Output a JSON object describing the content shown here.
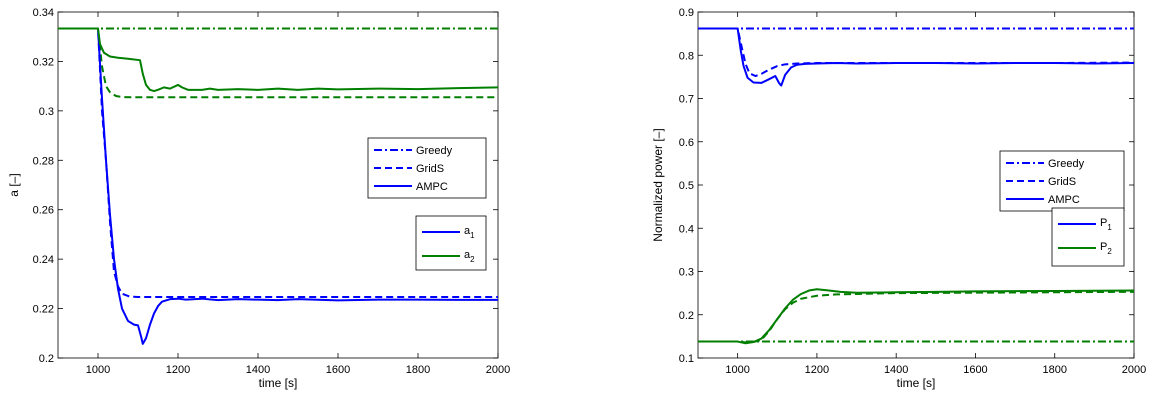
{
  "chart_data": [
    {
      "type": "line",
      "xlabel": "time [s]",
      "ylabel": "a [–]",
      "xlim": [
        900,
        2000
      ],
      "ylim": [
        0.2,
        0.34
      ],
      "xticks": [
        1000,
        1200,
        1400,
        1600,
        1800,
        2000
      ],
      "yticks": [
        0.2,
        0.22,
        0.24,
        0.26,
        0.28,
        0.3,
        0.32,
        0.34
      ],
      "ytick_labels": [
        "0.2",
        "0.22",
        "0.24",
        "0.26",
        "0.28",
        "0.3",
        "0.32",
        "0.34"
      ],
      "grid": false,
      "style_legend": {
        "placement": "right-middle",
        "entries": [
          {
            "label": "Greedy",
            "dash": "dashdot"
          },
          {
            "label": "GridS",
            "dash": "dashed"
          },
          {
            "label": "AMPC",
            "dash": "solid"
          }
        ]
      },
      "color_legend": {
        "placement": "right-lower",
        "entries": [
          {
            "base": "a",
            "sub": "1",
            "color": "#0000ff"
          },
          {
            "base": "a",
            "sub": "2",
            "color": "#007f00"
          }
        ]
      },
      "series": [
        {
          "key": "a1-greedy",
          "color": "#0000ff",
          "dash": "dashdot",
          "x": [
            900,
            2000
          ],
          "y": [
            0.3333,
            0.3333
          ]
        },
        {
          "key": "a2-greedy",
          "color": "#007f00",
          "dash": "dashdot",
          "x": [
            900,
            2000
          ],
          "y": [
            0.3333,
            0.3333
          ]
        },
        {
          "key": "a1-grids",
          "color": "#0000ff",
          "dash": "dashed",
          "x": [
            900,
            1000,
            1010,
            1020,
            1030,
            1040,
            1050,
            1060,
            1080,
            1100,
            1200,
            1400,
            1600,
            1800,
            2000
          ],
          "y": [
            0.3333,
            0.3333,
            0.3,
            0.28,
            0.255,
            0.235,
            0.229,
            0.226,
            0.2248,
            0.2247,
            0.2247,
            0.2247,
            0.2247,
            0.2247,
            0.2247
          ]
        },
        {
          "key": "a2-grids",
          "color": "#007f00",
          "dash": "dashed",
          "x": [
            900,
            1000,
            1010,
            1020,
            1030,
            1045,
            1060,
            1080,
            1100,
            1200,
            1400,
            1600,
            1800,
            2000
          ],
          "y": [
            0.3333,
            0.3333,
            0.318,
            0.31,
            0.3075,
            0.306,
            0.3056,
            0.3055,
            0.3055,
            0.3055,
            0.3055,
            0.3055,
            0.3055,
            0.3055
          ]
        },
        {
          "key": "a1-ampc",
          "color": "#0000ff",
          "dash": "solid",
          "x": [
            900,
            1000,
            1010,
            1020,
            1030,
            1040,
            1050,
            1060,
            1075,
            1090,
            1100,
            1108,
            1112,
            1120,
            1130,
            1140,
            1150,
            1160,
            1180,
            1200,
            1220,
            1260,
            1300,
            1350,
            1400,
            1450,
            1500,
            1600,
            1700,
            1800,
            1900,
            2000
          ],
          "y": [
            0.3333,
            0.3333,
            0.305,
            0.28,
            0.258,
            0.24,
            0.228,
            0.22,
            0.215,
            0.2135,
            0.2132,
            0.2085,
            0.2057,
            0.208,
            0.2135,
            0.218,
            0.221,
            0.2228,
            0.2238,
            0.224,
            0.2236,
            0.224,
            0.2234,
            0.2238,
            0.2236,
            0.2234,
            0.2238,
            0.2233,
            0.2236,
            0.2236,
            0.2235,
            0.2235
          ]
        },
        {
          "key": "a2-ampc",
          "color": "#007f00",
          "dash": "solid",
          "x": [
            900,
            1000,
            1005,
            1015,
            1030,
            1050,
            1080,
            1105,
            1112,
            1120,
            1130,
            1140,
            1150,
            1165,
            1180,
            1200,
            1210,
            1225,
            1240,
            1260,
            1280,
            1300,
            1350,
            1400,
            1450,
            1500,
            1550,
            1600,
            1700,
            1800,
            1900,
            2000
          ],
          "y": [
            0.3333,
            0.3333,
            0.327,
            0.3235,
            0.322,
            0.3215,
            0.321,
            0.3205,
            0.315,
            0.3105,
            0.3085,
            0.308,
            0.3085,
            0.3095,
            0.309,
            0.3105,
            0.3095,
            0.3085,
            0.3085,
            0.3085,
            0.309,
            0.3085,
            0.3088,
            0.3085,
            0.309,
            0.3085,
            0.309,
            0.3087,
            0.309,
            0.3088,
            0.3092,
            0.3095
          ]
        }
      ]
    },
    {
      "type": "line",
      "xlabel": "time [s]",
      "ylabel": "Normalized power [–]",
      "xlim": [
        900,
        2000
      ],
      "ylim": [
        0.1,
        0.9
      ],
      "xticks": [
        1000,
        1200,
        1400,
        1600,
        1800,
        2000
      ],
      "yticks": [
        0.1,
        0.2,
        0.3,
        0.4,
        0.5,
        0.6,
        0.7,
        0.8,
        0.9
      ],
      "ytick_labels": [
        "0.1",
        "0.2",
        "0.3",
        "0.4",
        "0.5",
        "0.6",
        "0.7",
        "0.8",
        "0.9"
      ],
      "grid": false,
      "style_legend": {
        "placement": "right-middle",
        "entries": [
          {
            "label": "Greedy",
            "dash": "dashdot"
          },
          {
            "label": "GridS",
            "dash": "dashed"
          },
          {
            "label": "AMPC",
            "dash": "solid"
          }
        ]
      },
      "color_legend": {
        "placement": "right-lower",
        "entries": [
          {
            "base": "P",
            "sub": "1",
            "color": "#0000ff"
          },
          {
            "base": "P",
            "sub": "2",
            "color": "#007f00"
          }
        ]
      },
      "series": [
        {
          "key": "p1-greedy",
          "color": "#0000ff",
          "dash": "dashdot",
          "x": [
            900,
            2000
          ],
          "y": [
            0.862,
            0.862
          ]
        },
        {
          "key": "p2-greedy",
          "color": "#007f00",
          "dash": "dashdot",
          "x": [
            900,
            2000
          ],
          "y": [
            0.138,
            0.138
          ]
        },
        {
          "key": "p1-grids",
          "color": "#0000ff",
          "dash": "dashed",
          "x": [
            900,
            1000,
            1010,
            1020,
            1030,
            1045,
            1060,
            1080,
            1100,
            1120,
            1150,
            1200,
            1400,
            1600,
            1800,
            2000
          ],
          "y": [
            0.862,
            0.862,
            0.82,
            0.78,
            0.758,
            0.752,
            0.757,
            0.767,
            0.775,
            0.779,
            0.781,
            0.782,
            0.782,
            0.782,
            0.782,
            0.783
          ]
        },
        {
          "key": "p2-grids",
          "color": "#007f00",
          "dash": "dashed",
          "x": [
            900,
            1000,
            1020,
            1040,
            1060,
            1080,
            1100,
            1120,
            1140,
            1160,
            1200,
            1250,
            1300,
            1400,
            1600,
            1800,
            2000
          ],
          "y": [
            0.138,
            0.138,
            0.136,
            0.137,
            0.142,
            0.163,
            0.19,
            0.213,
            0.228,
            0.237,
            0.244,
            0.247,
            0.248,
            0.25,
            0.251,
            0.252,
            0.253
          ]
        },
        {
          "key": "p1-ampc",
          "color": "#0000ff",
          "dash": "solid",
          "x": [
            900,
            1000,
            1008,
            1015,
            1025,
            1040,
            1060,
            1080,
            1095,
            1105,
            1110,
            1120,
            1135,
            1150,
            1170,
            1200,
            1250,
            1300,
            1400,
            1500,
            1600,
            1700,
            1800,
            1900,
            2000
          ],
          "y": [
            0.862,
            0.862,
            0.81,
            0.775,
            0.748,
            0.737,
            0.736,
            0.745,
            0.752,
            0.735,
            0.73,
            0.755,
            0.772,
            0.778,
            0.78,
            0.781,
            0.782,
            0.781,
            0.782,
            0.782,
            0.781,
            0.782,
            0.782,
            0.781,
            0.782
          ]
        },
        {
          "key": "p2-ampc",
          "color": "#007f00",
          "dash": "solid",
          "x": [
            900,
            1000,
            1020,
            1040,
            1060,
            1080,
            1100,
            1120,
            1140,
            1160,
            1180,
            1200,
            1230,
            1260,
            1300,
            1400,
            1500,
            1600,
            1800,
            2000
          ],
          "y": [
            0.138,
            0.138,
            0.134,
            0.137,
            0.145,
            0.165,
            0.19,
            0.215,
            0.235,
            0.248,
            0.256,
            0.259,
            0.256,
            0.253,
            0.251,
            0.252,
            0.253,
            0.254,
            0.255,
            0.256
          ]
        }
      ]
    }
  ]
}
